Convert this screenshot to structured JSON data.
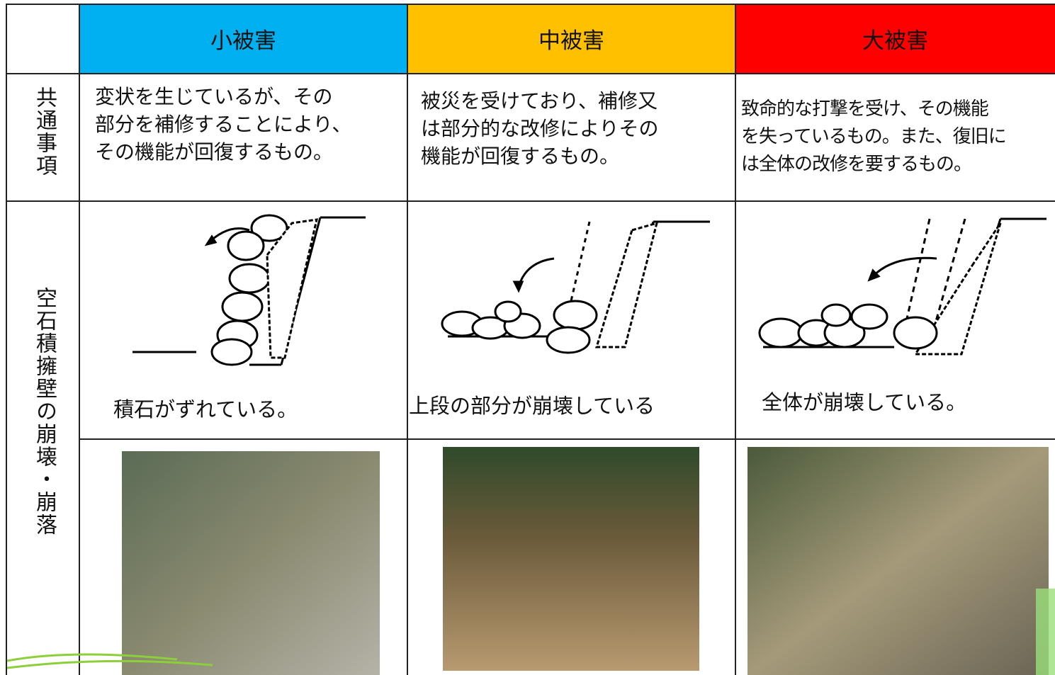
{
  "table": {
    "columns": [
      "小被害",
      "中被害",
      "大被害"
    ],
    "rows": [
      {
        "label": "共通事項",
        "cells": [
          [
            "変状を生じているが、その",
            "部分を補修することにより、",
            "その機能が回復するもの。"
          ],
          [
            "被災を受けており、補修又",
            "は部分的な改修によりその",
            "機能が回復するもの。"
          ],
          [
            "致命的な打撃を受け、その機能",
            "を失っているもの。また、復旧に",
            "は全体の改修を要するもの。"
          ]
        ]
      },
      {
        "label": "空石積擁壁の崩壊・崩落",
        "cells": [
          "積石がずれている。",
          "上段の部分が崩壊している",
          "全体が崩壊している。"
        ]
      }
    ]
  }
}
